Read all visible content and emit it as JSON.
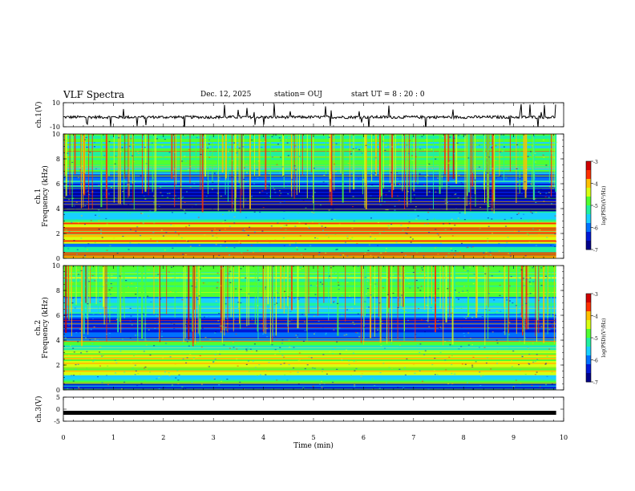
{
  "header": {
    "title": "VLF Spectra",
    "date": "Dec. 12, 2025",
    "station": "station= OUJ",
    "start_ut": "start  UT =  8 : 20 : 0"
  },
  "colors": {
    "axis": "#000000",
    "colormap": [
      "#00008a",
      "#0018d6",
      "#0070ff",
      "#18d0ff",
      "#20f0a0",
      "#50ff30",
      "#d8ff10",
      "#ffc000",
      "#ff3000",
      "#d00000"
    ]
  },
  "chart_data": [
    {
      "type": "line",
      "name": "ch1-waveform",
      "title": "VLF Spectra",
      "ylabel": "ch.1(V)",
      "ylim": [
        -10,
        10
      ],
      "yticks": [
        "10",
        "-10"
      ],
      "baseline": -2,
      "xlim": [
        0,
        10
      ]
    },
    {
      "type": "heatmap",
      "name": "ch1-spectrogram",
      "ylabel_lines": [
        "ch.1",
        "Frequency (kHz)"
      ],
      "ylim": [
        0,
        10
      ],
      "yticks": [
        "0",
        "2",
        "4",
        "6",
        "8",
        "10"
      ],
      "xlim": [
        0,
        10
      ],
      "data_end_min": 9.85,
      "colorbar": {
        "label": "log(PSD)(V²/Hz)",
        "range": [
          -7,
          -3
        ],
        "ticks": [
          "-3",
          "-4",
          "-5",
          "-6",
          "-7"
        ]
      },
      "bands": [
        {
          "from_khz": 0.0,
          "to_khz": 0.5,
          "log_psd": -3.8
        },
        {
          "from_khz": 0.5,
          "to_khz": 1.2,
          "log_psd": -5.6
        },
        {
          "from_khz": 1.2,
          "to_khz": 3.0,
          "log_psd": -4.2
        },
        {
          "from_khz": 3.0,
          "to_khz": 3.8,
          "log_psd": -5.4
        },
        {
          "from_khz": 3.8,
          "to_khz": 5.5,
          "log_psd": -6.6
        },
        {
          "from_khz": 5.5,
          "to_khz": 7.0,
          "log_psd": -6.0
        },
        {
          "from_khz": 7.0,
          "to_khz": 10.0,
          "log_psd": -5.1
        }
      ]
    },
    {
      "type": "heatmap",
      "name": "ch2-spectrogram",
      "ylabel_lines": [
        "ch.2",
        "Frequency (kHz)"
      ],
      "ylim": [
        0,
        10
      ],
      "yticks": [
        "0",
        "2",
        "4",
        "6",
        "8",
        "10"
      ],
      "xlim": [
        0,
        10
      ],
      "data_end_min": 9.85,
      "colorbar": {
        "label": "log(PSD)(V²/Hz)",
        "range": [
          -7,
          -3
        ],
        "ticks": [
          "-3",
          "-4",
          "-5",
          "-6",
          "-7"
        ]
      },
      "bands": [
        {
          "from_khz": 0.0,
          "to_khz": 0.6,
          "log_psd": -6.2
        },
        {
          "from_khz": 0.6,
          "to_khz": 1.2,
          "log_psd": -5.3
        },
        {
          "from_khz": 1.2,
          "to_khz": 3.2,
          "log_psd": -4.3
        },
        {
          "from_khz": 3.2,
          "to_khz": 4.0,
          "log_psd": -5.2
        },
        {
          "from_khz": 4.0,
          "to_khz": 6.0,
          "log_psd": -6.2
        },
        {
          "from_khz": 6.0,
          "to_khz": 7.5,
          "log_psd": -5.7
        },
        {
          "from_khz": 7.5,
          "to_khz": 10.0,
          "log_psd": -5.0
        }
      ]
    },
    {
      "type": "line",
      "name": "ch3-waveform",
      "ylabel": "ch.3(V)",
      "ylim": [
        -5,
        5
      ],
      "yticks": [
        "5",
        "0",
        "-5"
      ],
      "baseline": -1.5,
      "xlim": [
        0,
        10
      ],
      "xlabel": "Time (min)",
      "xticks": [
        "0",
        "1",
        "2",
        "3",
        "4",
        "5",
        "6",
        "7",
        "8",
        "9",
        "10"
      ]
    }
  ]
}
